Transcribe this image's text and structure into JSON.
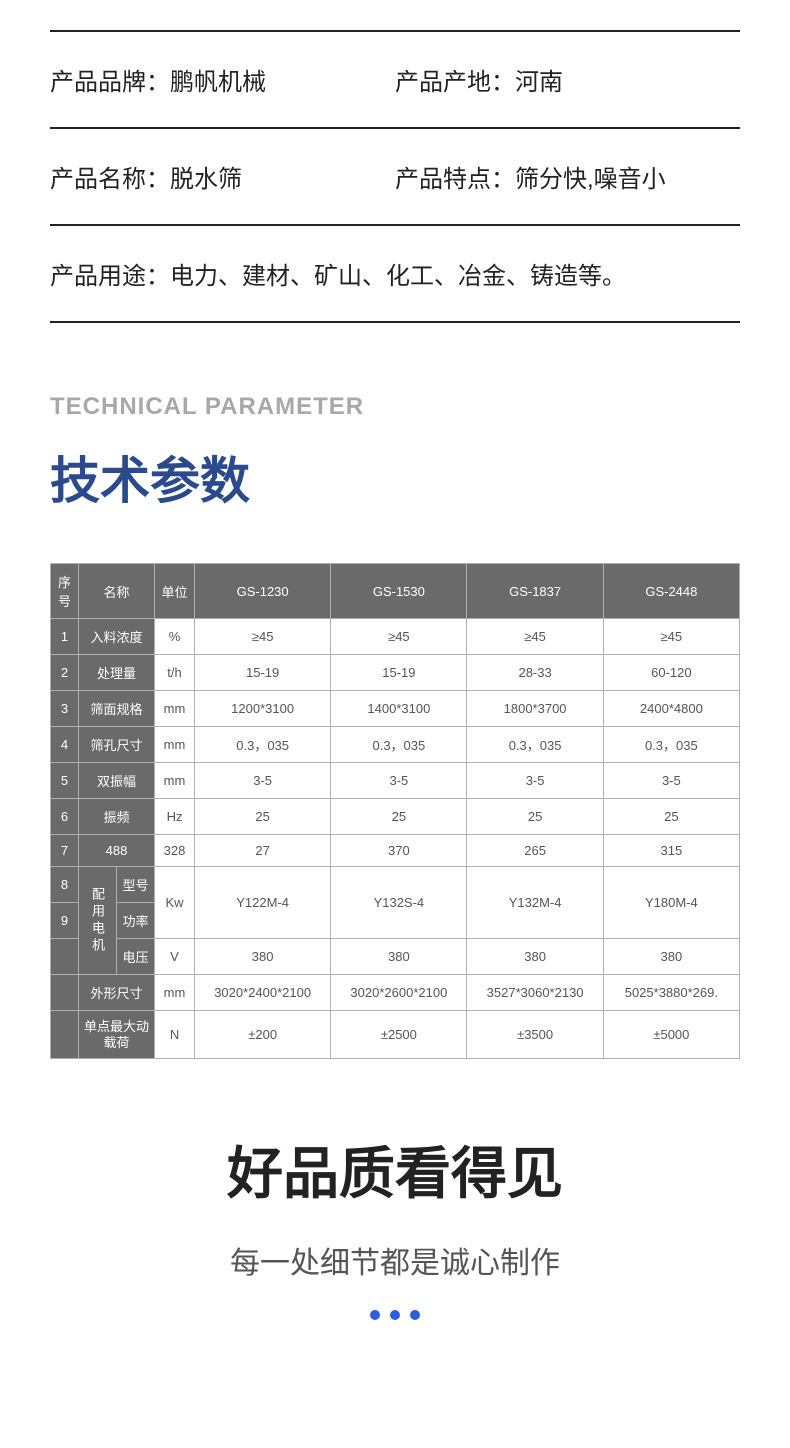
{
  "info": {
    "brand_label": "产品品牌：",
    "brand_value": "鹏帆机械",
    "origin_label": "产品产地：",
    "origin_value": "河南",
    "name_label": "产品名称：",
    "name_value": "脱水筛",
    "feature_label": "产品特点：",
    "feature_value": "筛分快,噪音小",
    "usage_label": "产品用途：",
    "usage_value": "电力、建材、矿山、化工、冶金、铸造等。"
  },
  "section": {
    "eng": "TECHNICAL PARAMETER",
    "cn": "技术参数"
  },
  "table": {
    "header": {
      "idx": "序号",
      "name": "名称",
      "unit": "单位",
      "m1": "GS-1230",
      "m2": "GS-1530",
      "m3": "GS-1837",
      "m4": "GS-2448"
    },
    "rows": {
      "r1": {
        "idx": "1",
        "name": "入料浓度",
        "unit": "%",
        "v1": "≥45",
        "v2": "≥45",
        "v3": "≥45",
        "v4": "≥45"
      },
      "r2": {
        "idx": "2",
        "name": "处理量",
        "unit": "t/h",
        "v1": "15-19",
        "v2": "15-19",
        "v3": "28-33",
        "v4": "60-120"
      },
      "r3": {
        "idx": "3",
        "name": "筛面规格",
        "unit": "mm",
        "v1": "1200*3100",
        "v2": "1400*3100",
        "v3": "1800*3700",
        "v4": "2400*4800"
      },
      "r4": {
        "idx": "4",
        "name": "筛孔尺寸",
        "unit": "mm",
        "v1": "0.3，035",
        "v2": "0.3，035",
        "v3": "0.3，035",
        "v4": "0.3，035"
      },
      "r5": {
        "idx": "5",
        "name": "双振幅",
        "unit": "mm",
        "v1": "3-5",
        "v2": "3-5",
        "v3": "3-5",
        "v4": "3-5"
      },
      "r6": {
        "idx": "6",
        "name": "振频",
        "unit": "Hz",
        "v1": "25",
        "v2": "25",
        "v3": "25",
        "v4": "25"
      },
      "r7": {
        "idx": "7",
        "name": "488",
        "unit": "328",
        "v1": "27",
        "v2": "370",
        "v3": "265",
        "v4": "315"
      },
      "motor_group": "配用电机",
      "r8": {
        "idx": "8",
        "sub": "型号",
        "unit": "Kw",
        "v1": "Y122M-4",
        "v2": "Y132S-4",
        "v3": "Y132M-4",
        "v4": "Y180M-4"
      },
      "r9": {
        "idx": "9",
        "sub": "功率"
      },
      "r10": {
        "sub": "电压",
        "unit": "V",
        "v1": "380",
        "v2": "380",
        "v3": "380",
        "v4": "380"
      },
      "r11": {
        "name": "外形尺寸",
        "unit": "mm",
        "v1": "3020*2400*2100",
        "v2": "3020*2600*2100",
        "v3": "3527*3060*2130",
        "v4": "5025*3880*269."
      },
      "r12": {
        "name": "单点最大动载荷",
        "unit": "N",
        "v1": "±200",
        "v2": "±2500",
        "v3": "±3500",
        "v4": "±5000"
      }
    }
  },
  "quality": {
    "title": "好品质看得见",
    "subtitle": "每一处细节都是诚心制作"
  },
  "colors": {
    "table_header_bg": "#6a6a6a",
    "table_border": "#b0b0b0",
    "accent": "#2b4a8b",
    "dot": "#2a5fe0"
  }
}
